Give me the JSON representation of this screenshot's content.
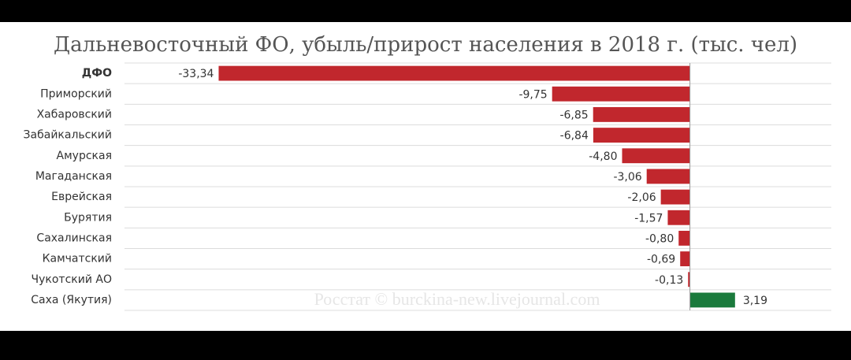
{
  "chart_data": {
    "type": "bar",
    "orientation": "horizontal",
    "title": "Дальневосточный ФО, убыль/прирост населения в 2018 г. (тыс. чел)",
    "categories": [
      "ДФО",
      "Приморский",
      "Хабаровский",
      "Забайкальский",
      "Амурская",
      "Магаданская",
      "Еврейская",
      "Бурятия",
      "Сахалинская",
      "Камчатский",
      "Чукотский АО",
      "Саха (Якутия)"
    ],
    "values": [
      -33.34,
      -9.75,
      -6.85,
      -6.84,
      -4.8,
      -3.06,
      -2.06,
      -1.57,
      -0.8,
      -0.69,
      -0.13,
      3.19
    ],
    "value_labels": [
      "-33,34",
      "-9,75",
      "-6,85",
      "-6,84",
      "-4,80",
      "-3,06",
      "-2,06",
      "-1,57",
      "-0,80",
      "-0,69",
      "-0,13",
      "3,19"
    ],
    "colors": [
      "#c1272d",
      "#c1272d",
      "#c1272d",
      "#c1272d",
      "#c1272d",
      "#c1272d",
      "#c1272d",
      "#c1272d",
      "#c1272d",
      "#c1272d",
      "#c1272d",
      "#1a7a3c"
    ],
    "xlim": [
      -40,
      10
    ],
    "annotation": "Росстат © burckina-new.livejournal.com"
  }
}
